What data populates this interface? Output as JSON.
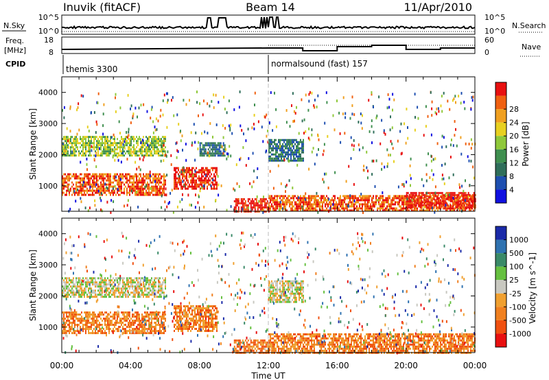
{
  "header": {
    "station": "Inuvik (fitACF)",
    "beam": "Beam 14",
    "date": "11/Apr/2010"
  },
  "summary": {
    "nsky_label": "N.Sky",
    "nsky_ticks": [
      "10^5",
      "10^0"
    ],
    "nsearch_label": "N.Search",
    "nsearch_ticks": [
      "10^5",
      "10^0"
    ],
    "freq_label_1": "Freq.",
    "freq_label_2": "[MHz]",
    "freq_ticks": [
      "18",
      "8"
    ],
    "nave_label": "Nave",
    "nave_ticks": [
      "60",
      "0"
    ],
    "cpid_label": "CPID",
    "cpid_segments": [
      {
        "label": "themis 3300",
        "start_hour": 0
      },
      {
        "label": "normalsound (fast) 157",
        "start_hour": 12
      }
    ]
  },
  "axes": {
    "xlabel": "Time UT",
    "x_ticks": [
      "00:00",
      "04:00",
      "08:00",
      "12:00",
      "16:00",
      "20:00",
      "00:00"
    ],
    "x_tick_hours": [
      0,
      4,
      8,
      12,
      16,
      20,
      24
    ],
    "ylabel": "Slant Range [km]",
    "y_ticks": [
      1000,
      2000,
      3000,
      4000
    ],
    "ylim": [
      180,
      4500
    ],
    "xlim": [
      0,
      24
    ]
  },
  "colors": {
    "power": [
      "#1010e0",
      "#1e4fb0",
      "#2f6e5a",
      "#3f8f4f",
      "#8fc83a",
      "#e8d020",
      "#f0a020",
      "#f06010",
      "#e81010"
    ],
    "velocity": [
      "#1a2aa8",
      "#2f72b0",
      "#3a8a68",
      "#66c040",
      "#c8c8c0",
      "#f0a030",
      "#f08020",
      "#f05010",
      "#e81010"
    ]
  },
  "chart_data": [
    {
      "type": "heatmap",
      "name": "power",
      "colorbar_label": "Power [dB]",
      "colorbar_ticks": [
        "4",
        "8",
        "12",
        "16",
        "20",
        "24",
        "28"
      ],
      "clim": [
        0,
        32
      ],
      "units": "dB",
      "x_units": "hours UT",
      "y_units": "km",
      "regions": [
        {
          "t0": 0.0,
          "t1": 6.0,
          "r0": 2000,
          "r1": 2600,
          "level": 4
        },
        {
          "t0": 0.0,
          "t1": 6.0,
          "r0": 700,
          "r1": 1400,
          "level": 7
        },
        {
          "t0": 6.5,
          "t1": 9.0,
          "r0": 900,
          "r1": 1600,
          "level": 8
        },
        {
          "t0": 8.0,
          "t1": 9.5,
          "r0": 2000,
          "r1": 2400,
          "level": 2
        },
        {
          "t0": 10.0,
          "t1": 12.0,
          "r0": 200,
          "r1": 600,
          "level": 8
        },
        {
          "t0": 12.0,
          "t1": 24.0,
          "r0": 200,
          "r1": 700,
          "level": 7
        },
        {
          "t0": 12.0,
          "t1": 14.0,
          "r0": 1800,
          "r1": 2500,
          "level": 2
        },
        {
          "t0": 20.0,
          "t1": 24.0,
          "r0": 300,
          "r1": 800,
          "level": 8
        }
      ]
    },
    {
      "type": "heatmap",
      "name": "velocity",
      "colorbar_label": "Velocity [m s^-1]",
      "colorbar_ticks": [
        "-1000",
        "-500",
        "-100",
        "-25",
        "25",
        "100",
        "500",
        "1000"
      ],
      "colorbar_order": "top to bottom: 1000 to -1000",
      "units": "m s^-1",
      "x_units": "hours UT",
      "y_units": "km",
      "regions": [
        {
          "t0": 0.0,
          "t1": 6.0,
          "r0": 2000,
          "r1": 2600,
          "level": 4
        },
        {
          "t0": 0.0,
          "t1": 6.0,
          "r0": 800,
          "r1": 1500,
          "level": 6
        },
        {
          "t0": 6.5,
          "t1": 9.0,
          "r0": 900,
          "r1": 1700,
          "level": 6
        },
        {
          "t0": 10.0,
          "t1": 12.0,
          "r0": 200,
          "r1": 600,
          "level": 6
        },
        {
          "t0": 12.0,
          "t1": 24.0,
          "r0": 200,
          "r1": 800,
          "level": 6
        },
        {
          "t0": 12.0,
          "t1": 14.0,
          "r0": 1800,
          "r1": 2500,
          "level": 4
        }
      ]
    }
  ]
}
